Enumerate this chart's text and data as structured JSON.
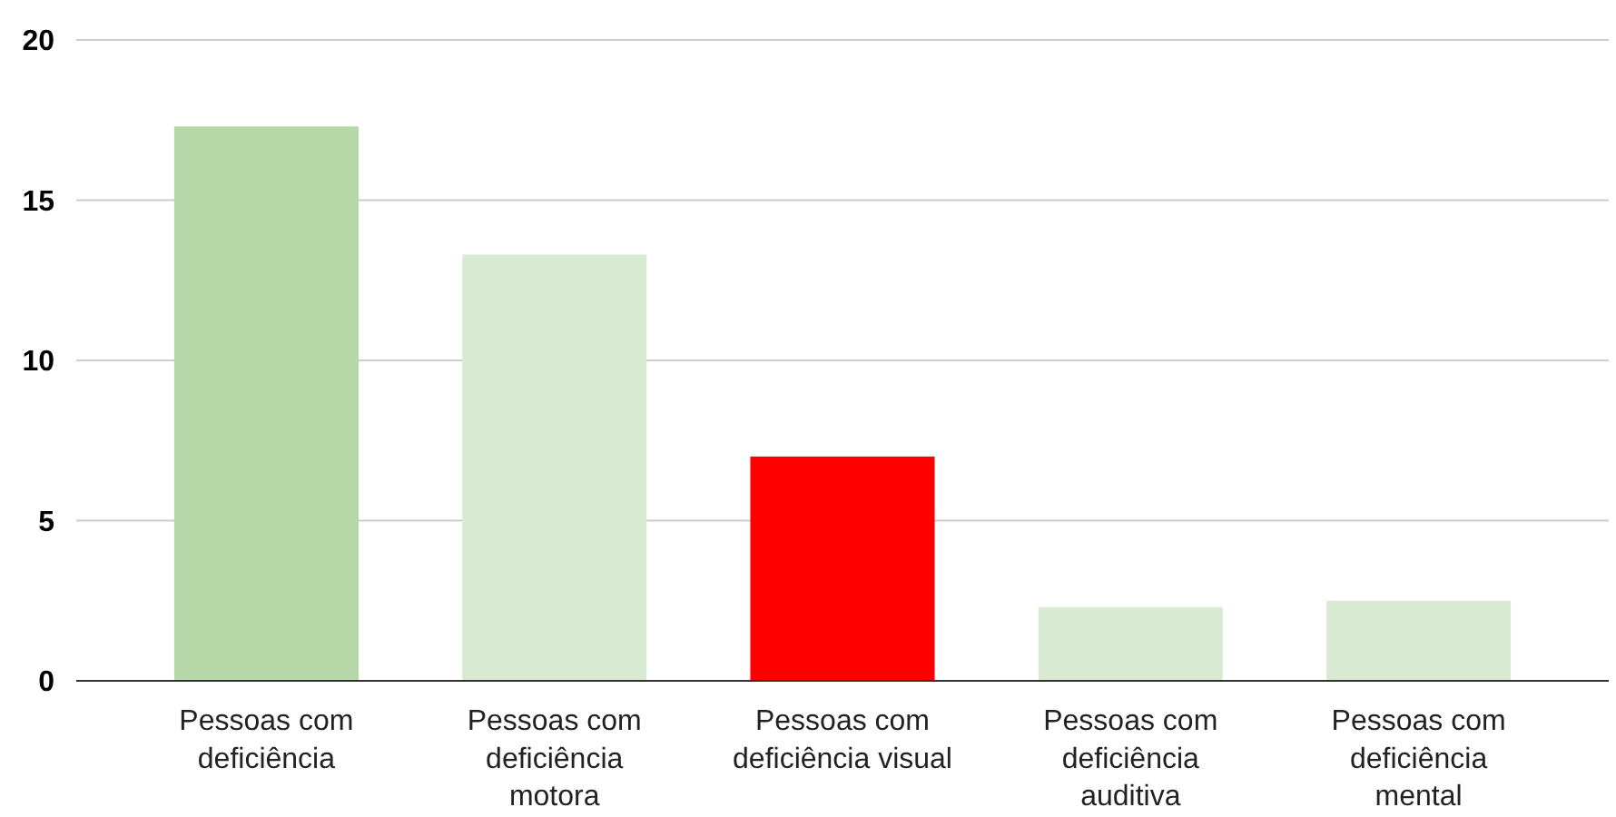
{
  "chart_data": {
    "type": "bar",
    "categories": [
      "Pessoas com deficiência",
      "Pessoas com deficiência motora",
      "Pessoas com deficiência visual",
      "Pessoas com deficiência auditiva",
      "Pessoas com deficiência mental"
    ],
    "values": [
      17.3,
      13.3,
      7.0,
      2.3,
      2.5
    ],
    "colors": [
      "#b6d7a8",
      "#d9ead3",
      "#ff0000",
      "#d9ead3",
      "#d9ead3"
    ],
    "ylim": [
      0,
      20
    ],
    "yticks": [
      0,
      5,
      10,
      15,
      20
    ],
    "grid": "y"
  }
}
